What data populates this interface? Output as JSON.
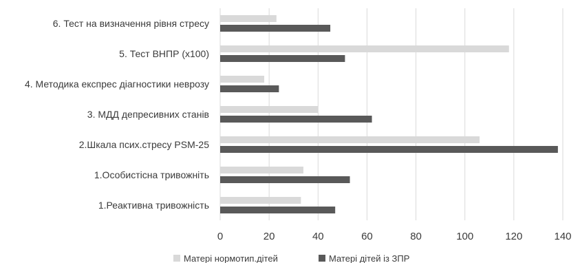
{
  "chart_data": {
    "type": "bar",
    "orientation": "horizontal",
    "categories": [
      "6. Тест на  визначення рівня стресу",
      "5. Тест ВНПР (х100)",
      "4. Методика експрес діагностики неврозу",
      "3. МДД депресивних станів",
      "2.Шкала псих.стресу PSM-25",
      "1.Особистісна тривожніть",
      "1.Реактивна тривожність"
    ],
    "series": [
      {
        "name": "Матері нормотип.дітей",
        "color": "#d9d9d9",
        "values": [
          23,
          118,
          18,
          40,
          106,
          34,
          33
        ]
      },
      {
        "name": "Матері дітей із ЗПР",
        "color": "#595959",
        "values": [
          45,
          51,
          24,
          62,
          138,
          53,
          47
        ]
      }
    ],
    "xlim": [
      0,
      140
    ],
    "xticks": [
      0,
      20,
      40,
      60,
      80,
      100,
      120,
      140
    ],
    "grid": true,
    "legend": "bottom",
    "title": "",
    "xlabel": "",
    "ylabel": ""
  }
}
